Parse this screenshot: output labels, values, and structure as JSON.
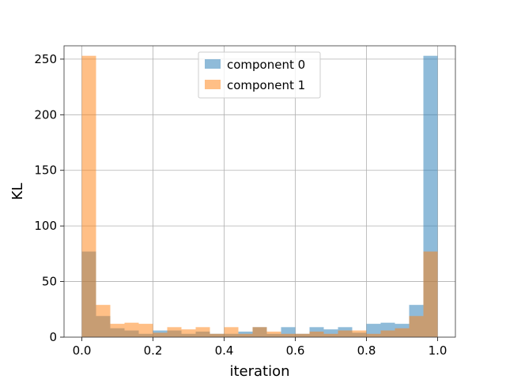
{
  "chart_data": {
    "type": "bar",
    "subtype": "histogram",
    "xlabel": "iteration",
    "ylabel": "KL",
    "xlim": [
      -0.05,
      1.05
    ],
    "ylim": [
      0,
      262
    ],
    "xticks": [
      0.0,
      0.2,
      0.4,
      0.6,
      0.8,
      1.0
    ],
    "xtick_labels": [
      "0.0",
      "0.2",
      "0.4",
      "0.6",
      "0.8",
      "1.0"
    ],
    "yticks": [
      0,
      50,
      100,
      150,
      200,
      250
    ],
    "ytick_labels": [
      "0",
      "50",
      "100",
      "150",
      "200",
      "250"
    ],
    "grid": true,
    "legend_position": "top-center",
    "bins": {
      "start": 0.0,
      "end": 1.0,
      "count": 25
    },
    "series": [
      {
        "name": "component 0",
        "color": "#1f77b4",
        "alpha": 0.5,
        "values": [
          77,
          19,
          8,
          6,
          3,
          6,
          6,
          3,
          5,
          3,
          3,
          5,
          9,
          3,
          9,
          3,
          9,
          7,
          9,
          4,
          12,
          13,
          12,
          29,
          253
        ]
      },
      {
        "name": "component 1",
        "color": "#ff7f0e",
        "alpha": 0.5,
        "values": [
          253,
          29,
          12,
          13,
          12,
          4,
          9,
          7,
          9,
          3,
          9,
          3,
          9,
          5,
          3,
          3,
          5,
          3,
          6,
          6,
          3,
          6,
          8,
          19,
          77
        ]
      }
    ]
  }
}
